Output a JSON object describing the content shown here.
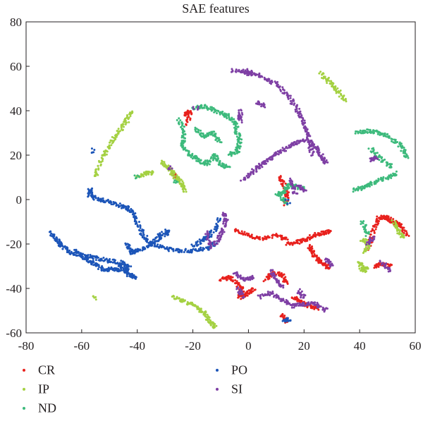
{
  "chart_data": {
    "type": "scatter",
    "title": "SAE features",
    "xlabel": "",
    "ylabel": "",
    "xlim": [
      -80,
      60
    ],
    "ylim": [
      -60,
      80
    ],
    "xticks": [
      -80,
      -60,
      -40,
      -20,
      0,
      20,
      40,
      60
    ],
    "yticks": [
      -60,
      -40,
      -20,
      0,
      20,
      40,
      60,
      80
    ],
    "grid": false,
    "legend_position": "bottom",
    "series": [
      {
        "name": "CR",
        "color": "#e8211d",
        "segments": [
          [
            [
              -5,
              -14
            ],
            [
              0,
              -16
            ],
            [
              5,
              -18
            ],
            [
              10,
              -16
            ],
            [
              14,
              -18
            ]
          ],
          [
            [
              14,
              -20
            ],
            [
              18,
              -19
            ],
            [
              21,
              -18
            ],
            [
              24,
              -16
            ],
            [
              27,
              -15
            ],
            [
              30,
              -14
            ]
          ],
          [
            [
              22,
              -21
            ],
            [
              23,
              -24
            ],
            [
              25,
              -27
            ],
            [
              27,
              -29
            ],
            [
              29,
              -31
            ]
          ],
          [
            [
              -10,
              -36
            ],
            [
              -7,
              -35
            ],
            [
              -4,
              -38
            ],
            [
              -2,
              -41
            ],
            [
              -3,
              -44
            ],
            [
              0,
              -42
            ],
            [
              2,
              -40
            ]
          ],
          [
            [
              6,
              -36
            ],
            [
              9,
              -33
            ],
            [
              12,
              -34
            ],
            [
              14,
              -38
            ]
          ],
          [
            [
              16,
              -44
            ],
            [
              19,
              -46
            ],
            [
              22,
              -48
            ],
            [
              25,
              -49
            ]
          ],
          [
            [
              43,
              -22
            ],
            [
              45,
              -14
            ],
            [
              47,
              -8
            ],
            [
              50,
              -8
            ],
            [
              52,
              -10
            ],
            [
              55,
              -12
            ],
            [
              57,
              -16
            ]
          ],
          [
            [
              45,
              -30
            ],
            [
              48,
              -29
            ],
            [
              51,
              -30
            ]
          ],
          [
            [
              -23,
              38
            ],
            [
              -21,
              40
            ],
            [
              -22,
              34
            ]
          ],
          [
            [
              -27,
              12
            ],
            [
              -26,
              10
            ]
          ],
          [
            [
              11,
              10
            ],
            [
              13,
              6
            ],
            [
              14,
              2
            ],
            [
              13,
              -2
            ]
          ],
          [
            [
              12,
              -52
            ],
            [
              14,
              -55
            ]
          ]
        ]
      },
      {
        "name": "IP",
        "color": "#a4d142",
        "segments": [
          [
            [
              -55,
              10
            ],
            [
              -53,
              18
            ],
            [
              -50,
              24
            ],
            [
              -47,
              30
            ],
            [
              -44,
              35
            ],
            [
              -42,
              40
            ]
          ],
          [
            [
              -40,
              10
            ],
            [
              -37,
              12
            ],
            [
              -34,
              12
            ]
          ],
          [
            [
              -31,
              17
            ],
            [
              -28,
              13
            ],
            [
              -26,
              10
            ],
            [
              -24,
              7
            ],
            [
              -23,
              4
            ]
          ],
          [
            [
              26,
              57
            ],
            [
              29,
              53
            ],
            [
              32,
              49
            ],
            [
              35,
              44
            ]
          ],
          [
            [
              -27,
              -44
            ],
            [
              -23,
              -46
            ],
            [
              -19,
              -48
            ],
            [
              -16,
              -51
            ],
            [
              -14,
              -55
            ],
            [
              -12,
              -58
            ]
          ],
          [
            [
              41,
              -18
            ],
            [
              43,
              -20
            ],
            [
              42,
              -24
            ]
          ],
          [
            [
              40,
              -28
            ],
            [
              41,
              -32
            ],
            [
              43,
              -31
            ]
          ],
          [
            [
              52,
              -10
            ],
            [
              54,
              -14
            ],
            [
              56,
              -17
            ]
          ],
          [
            [
              -55,
              -44
            ]
          ]
        ]
      },
      {
        "name": "ND",
        "color": "#3dba7c",
        "segments": [
          [
            [
              -25,
              36
            ],
            [
              -23,
              30
            ],
            [
              -24,
              24
            ],
            [
              -21,
              20
            ],
            [
              -18,
              18
            ],
            [
              -15,
              16
            ],
            [
              -12,
              20
            ],
            [
              -10,
              16
            ],
            [
              -7,
              14
            ]
          ],
          [
            [
              -20,
              41
            ],
            [
              -16,
              42
            ],
            [
              -12,
              40
            ],
            [
              -8,
              38
            ],
            [
              -5,
              35
            ],
            [
              -4,
              30
            ],
            [
              -3,
              26
            ],
            [
              -4,
              22
            ],
            [
              -7,
              20
            ]
          ],
          [
            [
              -19,
              32
            ],
            [
              -16,
              28
            ],
            [
              -13,
              30
            ],
            [
              -10,
              26
            ]
          ],
          [
            [
              38,
              4
            ],
            [
              42,
              6
            ],
            [
              46,
              8
            ],
            [
              50,
              10
            ],
            [
              54,
              12
            ]
          ],
          [
            [
              39,
              30
            ],
            [
              43,
              31
            ],
            [
              47,
              30
            ],
            [
              51,
              28
            ],
            [
              55,
              24
            ],
            [
              57,
              19
            ]
          ],
          [
            [
              44,
              23
            ],
            [
              48,
              18
            ],
            [
              52,
              14
            ]
          ],
          [
            [
              10,
              2
            ],
            [
              13,
              4
            ],
            [
              15,
              7
            ],
            [
              17,
              6
            ],
            [
              20,
              5
            ]
          ],
          [
            [
              12,
              1
            ],
            [
              14,
              -2
            ]
          ],
          [
            [
              -40,
              10
            ]
          ],
          [
            [
              41,
              -10
            ],
            [
              43,
              -16
            ]
          ],
          [
            [
              -26,
              8
            ]
          ]
        ]
      },
      {
        "name": "PO",
        "color": "#1c55b8",
        "segments": [
          [
            [
              -57,
              5
            ],
            [
              -57,
              2
            ],
            [
              -54,
              0
            ],
            [
              -50,
              -1
            ],
            [
              -45,
              -3
            ],
            [
              -42,
              -5
            ],
            [
              -40,
              -10
            ],
            [
              -38,
              -16
            ],
            [
              -35,
              -20
            ],
            [
              -30,
              -22
            ],
            [
              -25,
              -23
            ],
            [
              -20,
              -23
            ],
            [
              -15,
              -22
            ],
            [
              -12,
              -20
            ]
          ],
          [
            [
              -71,
              -15
            ],
            [
              -69,
              -18
            ],
            [
              -67,
              -21
            ],
            [
              -64,
              -24
            ],
            [
              -60,
              -25
            ],
            [
              -56,
              -26
            ],
            [
              -52,
              -27
            ],
            [
              -48,
              -28
            ],
            [
              -45,
              -31
            ],
            [
              -43,
              -34
            ],
            [
              -40,
              -35
            ]
          ],
          [
            [
              -62,
              -23
            ],
            [
              -58,
              -27
            ],
            [
              -55,
              -29
            ],
            [
              -52,
              -32
            ],
            [
              -49,
              -31
            ],
            [
              -46,
              -32
            ]
          ],
          [
            [
              -44,
              -20
            ],
            [
              -42,
              -24
            ],
            [
              -40,
              -23
            ],
            [
              -36,
              -21
            ],
            [
              -33,
              -18
            ],
            [
              -31,
              -15
            ]
          ],
          [
            [
              -20,
              -21
            ],
            [
              -16,
              -18
            ],
            [
              -13,
              -15
            ],
            [
              -10,
              -8
            ]
          ],
          [
            [
              -46,
              -28
            ],
            [
              -43,
              -30
            ],
            [
              -44,
              -33
            ]
          ],
          [
            [
              -30,
              -16
            ],
            [
              -29,
              -14
            ]
          ],
          [
            [
              -56,
              22
            ]
          ],
          [
            [
              13,
              -55
            ],
            [
              15,
              -54
            ]
          ],
          [
            [
              14,
              -1
            ]
          ]
        ]
      },
      {
        "name": "SI",
        "color": "#7e3fa4",
        "segments": [
          [
            [
              -6,
              58
            ],
            [
              0,
              58
            ],
            [
              5,
              55
            ],
            [
              10,
              52
            ],
            [
              14,
              47
            ],
            [
              17,
              42
            ],
            [
              19,
              37
            ],
            [
              21,
              32
            ],
            [
              22,
              26
            ],
            [
              23,
              20
            ]
          ],
          [
            [
              -2,
              9
            ],
            [
              2,
              13
            ],
            [
              5,
              16
            ],
            [
              8,
              19
            ],
            [
              12,
              22
            ],
            [
              16,
              25
            ],
            [
              20,
              27
            ],
            [
              24,
              24
            ],
            [
              26,
              20
            ],
            [
              28,
              16
            ]
          ],
          [
            [
              -2,
              58
            ],
            [
              1,
              56
            ]
          ],
          [
            [
              3,
              44
            ],
            [
              6,
              42
            ]
          ],
          [
            [
              -12,
              -20
            ],
            [
              -10,
              -16
            ],
            [
              -8,
              -10
            ],
            [
              -9,
              -6
            ]
          ],
          [
            [
              -5,
              -33
            ],
            [
              -2,
              -36
            ],
            [
              2,
              -35
            ]
          ],
          [
            [
              8,
              -32
            ],
            [
              10,
              -36
            ],
            [
              12,
              -40
            ]
          ],
          [
            [
              4,
              -44
            ],
            [
              8,
              -42
            ],
            [
              12,
              -45
            ],
            [
              16,
              -48
            ],
            [
              20,
              -47
            ],
            [
              24,
              -47
            ],
            [
              28,
              -50
            ]
          ],
          [
            [
              -4,
              -40
            ],
            [
              -2,
              -44
            ]
          ],
          [
            [
              -3,
              40
            ],
            [
              -3,
              35
            ]
          ],
          [
            [
              18,
              -41
            ],
            [
              20,
              -44
            ]
          ],
          [
            [
              48,
              -28
            ],
            [
              51,
              -32
            ]
          ],
          [
            [
              43,
              -20
            ],
            [
              45,
              -17
            ]
          ],
          [
            [
              -15,
              -15
            ],
            [
              -13,
              -22
            ]
          ],
          [
            [
              28,
              -27
            ],
            [
              30,
              -30
            ]
          ],
          [
            [
              -19,
              41
            ]
          ],
          [
            [
              -28,
              14
            ]
          ],
          [
            [
              20,
              4
            ],
            [
              18,
              6
            ]
          ],
          [
            [
              44,
              18
            ],
            [
              46,
              19
            ]
          ],
          [
            [
              15,
              9
            ],
            [
              17,
              2
            ]
          ]
        ]
      }
    ]
  },
  "legend": [
    {
      "label": "CR",
      "color": "#e8211d"
    },
    {
      "label": "IP",
      "color": "#a4d142"
    },
    {
      "label": "ND",
      "color": "#3dba7c"
    },
    {
      "label": "PO",
      "color": "#1c55b8"
    },
    {
      "label": "SI",
      "color": "#7e3fa4"
    }
  ]
}
